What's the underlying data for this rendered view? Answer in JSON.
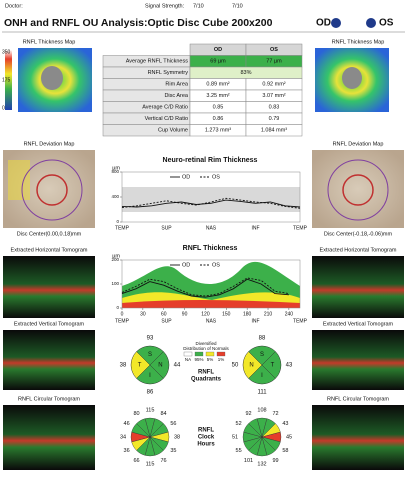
{
  "header": {
    "doctor": "Doctor:",
    "signal_label": "Signal Strength:",
    "signal_od": "7/10",
    "signal_os": "7/10"
  },
  "title": "ONH and RNFL OU Analysis:Optic Disc Cube 200x200",
  "eye_od": "OD",
  "eye_os": "OS",
  "left": {
    "thickness_map": "RNFL Thickness Map",
    "scale": [
      350,
      175,
      0
    ],
    "deviation_map": "RNFL Deviation Map",
    "disc_center": "Disc Center(0.00,0.18)mm",
    "horizontal": "Extracted Horizontal Tomogram",
    "vertical": "Extracted Vertical Tomogram",
    "circular": "RNFL Circular Tomogram"
  },
  "right": {
    "thickness_map": "RNFL Thickness Map",
    "deviation_map": "RNFL Deviation Map",
    "disc_center": "Disc Center(-0.18,-0.06)mm",
    "horizontal": "Extracted Horizontal Tomogram",
    "vertical": "Extracted Vertical Tomogram",
    "circular": "RNFL Circular Tomogram"
  },
  "table": {
    "columns": [
      "OD",
      "OS"
    ],
    "rows": [
      [
        "Average RNFL Thickness",
        "69 µm",
        "77 µm"
      ],
      [
        "RNFL Symmetry",
        "83%"
      ],
      [
        "Rim Area",
        "0.89 mm²",
        "0.92 mm²"
      ],
      [
        "Disc Area",
        "3.25 mm²",
        "3.07 mm²"
      ],
      [
        "Average C/D Ratio",
        "0.85",
        "0.83"
      ],
      [
        "Vertical C/D Ratio",
        "0.86",
        "0.79"
      ],
      [
        "Cup Volume",
        "1.273 mm³",
        "1.084 mm³"
      ]
    ]
  },
  "rim_chart": {
    "type": "line",
    "title": "Neuro-retinal Rim Thickness",
    "unit": "µm",
    "ylim": [
      0,
      800
    ],
    "yticks": [
      0,
      400,
      800
    ],
    "regions": [
      "TEMP",
      "SUP",
      "NAS",
      "INF",
      "TEMP"
    ],
    "series": [
      {
        "name": "OD",
        "color": "#111111",
        "dash": false,
        "values": [
          250,
          240,
          260,
          300,
          320,
          280,
          300,
          350,
          330,
          300,
          320,
          260,
          240
        ]
      },
      {
        "name": "OS",
        "color": "#111111",
        "dash": true,
        "values": [
          230,
          260,
          300,
          340,
          300,
          270,
          320,
          380,
          350,
          320,
          300,
          250,
          220
        ]
      }
    ]
  },
  "rnfl_chart": {
    "type": "line",
    "title": "RNFL Thickness",
    "unit": "µm",
    "xlim": [
      0,
      256
    ],
    "xticks": [
      0,
      30,
      60,
      90,
      120,
      150,
      180,
      210,
      240
    ],
    "ylim": [
      0,
      200
    ],
    "yticks": [
      0,
      100,
      200
    ],
    "regions": [
      "TEMP",
      "SUP",
      "NAS",
      "INF",
      "TEMP"
    ],
    "x": [
      0,
      20,
      40,
      60,
      80,
      100,
      120,
      140,
      160,
      180,
      200,
      220,
      240
    ],
    "series": [
      {
        "name": "OD",
        "color": "#111111",
        "dash": false,
        "values": [
          60,
          80,
          110,
          95,
          70,
          50,
          45,
          55,
          80,
          120,
          100,
          60,
          55
        ]
      },
      {
        "name": "OS",
        "color": "#111111",
        "dash": true,
        "values": [
          65,
          90,
          120,
          110,
          80,
          55,
          50,
          60,
          90,
          125,
          115,
          70,
          60
        ]
      }
    ]
  },
  "legend": {
    "diversified": "Diversified",
    "distribution": "Distribution of Normals",
    "na": "NA",
    "p95": "95%",
    "p5": "5%",
    "p1": "1%",
    "quadrants_title": [
      "RNFL",
      "Quadrants"
    ],
    "clock_title": [
      "RNFL",
      "Clock",
      "Hours"
    ]
  },
  "quadrants": {
    "od": [
      {
        "label": "S",
        "value": 93,
        "color": "#3cb04a"
      },
      {
        "label": "N",
        "value": 44,
        "color": "#3cb04a"
      },
      {
        "label": "I",
        "value": 86,
        "color": "#3cb04a"
      },
      {
        "label": "T",
        "value": 38,
        "color": "#f2e829"
      }
    ],
    "os": [
      {
        "label": "S",
        "value": 88,
        "color": "#3cb04a"
      },
      {
        "label": "T",
        "value": 43,
        "color": "#3cb04a"
      },
      {
        "label": "I",
        "value": 111,
        "color": "#3cb04a"
      },
      {
        "label": "N",
        "value": 50,
        "color": "#f2e829"
      }
    ]
  },
  "clock": {
    "od": {
      "values": [
        115,
        84,
        56,
        38,
        35,
        76,
        115,
        66,
        36,
        34,
        46,
        80
      ],
      "colors": [
        "#3cb04a",
        "#3cb04a",
        "#3cb04a",
        "#f2e829",
        "#3cb04a",
        "#3cb04a",
        "#3cb04a",
        "#3cb04a",
        "#f2e829",
        "#e53e2b",
        "#3cb04a",
        "#3cb04a"
      ]
    },
    "os": {
      "values": [
        108,
        72,
        43,
        45,
        58,
        99,
        132,
        101,
        55,
        51,
        52,
        92
      ],
      "colors": [
        "#3cb04a",
        "#3cb04a",
        "#f2e829",
        "#e53e2b",
        "#3cb04a",
        "#3cb04a",
        "#3cb04a",
        "#3cb04a",
        "#3cb04a",
        "#3cb04a",
        "#3cb04a",
        "#3cb04a"
      ]
    }
  }
}
